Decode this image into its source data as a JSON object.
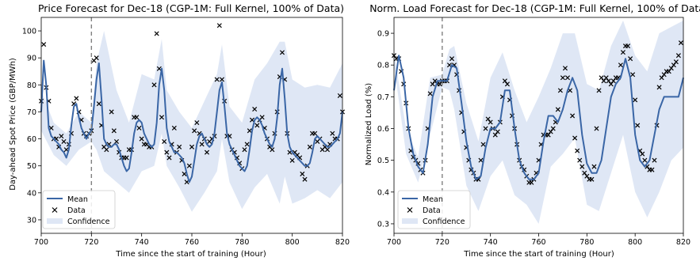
{
  "chart_data": [
    {
      "type": "line",
      "title": "Price Forecast for Dec-18 (CGP-1M: Full Kernel, 100% of Data)",
      "xlabel": "Time since the start of training (Hour)",
      "ylabel": "Day-ahead Spot Price (GBP/MWh)",
      "xlim": [
        700,
        820
      ],
      "ylim": [
        25,
        105
      ],
      "xticks": [
        700,
        720,
        740,
        760,
        780,
        800,
        820
      ],
      "yticks": [
        30,
        40,
        50,
        60,
        70,
        80,
        90,
        100
      ],
      "vline_x": 720,
      "grid": false,
      "legend": {
        "position": "lower-left",
        "entries": [
          "Mean",
          "Data",
          "Confidence"
        ]
      },
      "colors": {
        "mean": "#3a66a6",
        "confidence": "#c9d7ee",
        "data": "#000000",
        "vline": "#808080"
      },
      "series": [
        {
          "name": "Mean",
          "x": [
            700,
            701,
            702,
            703,
            704,
            705,
            706,
            707,
            708,
            709,
            710,
            711,
            712,
            713,
            714,
            715,
            716,
            717,
            718,
            719,
            720,
            721,
            722,
            723,
            724,
            725,
            726,
            727,
            728,
            729,
            730,
            731,
            732,
            733,
            734,
            735,
            736,
            737,
            738,
            739,
            740,
            741,
            742,
            743,
            744,
            745,
            746,
            747,
            748,
            749,
            750,
            751,
            752,
            753,
            754,
            755,
            756,
            757,
            758,
            759,
            760,
            761,
            762,
            763,
            764,
            765,
            766,
            767,
            768,
            769,
            770,
            771,
            772,
            773,
            774,
            775,
            776,
            777,
            778,
            779,
            780,
            781,
            782,
            783,
            784,
            785,
            786,
            787,
            788,
            789,
            790,
            791,
            792,
            793,
            794,
            795,
            796,
            797,
            798,
            799,
            800,
            801,
            802,
            803,
            804,
            805,
            806,
            807,
            808,
            809,
            810,
            811,
            812,
            813,
            814,
            815,
            816,
            817,
            818,
            819,
            820
          ],
          "y": [
            70,
            89,
            80,
            64,
            61,
            60,
            59,
            58,
            56,
            55,
            53,
            56,
            65,
            72,
            73,
            68,
            64,
            62,
            60,
            62,
            63,
            72,
            82,
            88,
            75,
            60,
            58,
            57,
            57,
            58,
            58,
            56,
            53,
            50,
            48,
            49,
            55,
            62,
            66,
            67,
            66,
            62,
            60,
            58,
            57,
            58,
            66,
            80,
            86,
            78,
            64,
            59,
            57,
            55,
            55,
            54,
            53,
            51,
            47,
            44,
            46,
            52,
            58,
            61,
            62,
            60,
            58,
            57,
            58,
            62,
            70,
            78,
            81,
            72,
            62,
            58,
            56,
            54,
            52,
            50,
            49,
            48,
            50,
            56,
            63,
            67,
            68,
            67,
            65,
            62,
            60,
            58,
            57,
            60,
            68,
            80,
            86,
            75,
            62,
            57,
            55,
            54,
            53,
            52,
            51,
            50,
            50,
            51,
            55,
            60,
            61,
            60,
            59,
            58,
            57,
            57,
            58,
            59,
            60,
            62,
            70
          ]
        },
        {
          "name": "Confidence",
          "x": [
            700,
            705,
            710,
            715,
            720,
            722,
            725,
            730,
            735,
            740,
            745,
            748,
            750,
            755,
            760,
            765,
            770,
            772,
            775,
            780,
            785,
            790,
            795,
            797,
            800,
            805,
            810,
            815,
            820
          ],
          "lower": [
            63,
            54,
            50,
            56,
            59,
            56,
            48,
            44,
            40,
            48,
            50,
            62,
            50,
            42,
            33,
            40,
            48,
            60,
            44,
            34,
            42,
            47,
            36,
            46,
            36,
            38,
            41,
            38,
            44
          ],
          "upper": [
            78,
            66,
            62,
            70,
            66,
            88,
            100,
            78,
            66,
            84,
            82,
            97,
            78,
            70,
            64,
            74,
            84,
            95,
            72,
            66,
            82,
            88,
            96,
            96,
            82,
            79,
            80,
            79,
            88
          ]
        },
        {
          "name": "Data",
          "x": [
            700,
            701,
            702,
            703,
            704,
            705,
            706,
            707,
            708,
            709,
            710,
            711,
            712,
            713,
            714,
            715,
            716,
            717,
            718,
            719,
            720,
            721,
            722,
            723,
            724,
            725,
            726,
            727,
            728,
            729,
            730,
            731,
            732,
            733,
            734,
            735,
            736,
            737,
            738,
            739,
            740,
            741,
            742,
            743,
            744,
            745,
            746,
            747,
            748,
            749,
            750,
            751,
            752,
            753,
            754,
            755,
            756,
            757,
            758,
            759,
            760,
            761,
            762,
            763,
            764,
            765,
            766,
            767,
            768,
            769,
            770,
            771,
            772,
            773,
            774,
            775,
            776,
            777,
            778,
            779,
            780,
            781,
            782,
            783,
            784,
            785,
            786,
            787,
            788,
            789,
            790,
            791,
            792,
            793,
            794,
            795,
            796,
            797,
            798,
            799,
            800,
            801,
            802,
            803,
            804,
            805,
            806,
            807,
            808,
            809,
            810,
            811,
            812,
            813,
            814,
            815,
            816,
            817,
            818,
            819,
            820
          ],
          "y": [
            74,
            95,
            79,
            74,
            64,
            60,
            60,
            57,
            61,
            59,
            56,
            58,
            62,
            73,
            75,
            70,
            67,
            62,
            61,
            62,
            63,
            89,
            90,
            73,
            65,
            57,
            56,
            58,
            70,
            63,
            59,
            55,
            53,
            53,
            53,
            56,
            56,
            68,
            68,
            64,
            60,
            58,
            58,
            57,
            57,
            80,
            99,
            86,
            68,
            59,
            55,
            53,
            58,
            64,
            55,
            57,
            52,
            47,
            44,
            50,
            57,
            63,
            66,
            62,
            58,
            60,
            55,
            59,
            60,
            61,
            82,
            102,
            82,
            74,
            61,
            61,
            56,
            55,
            53,
            51,
            49,
            56,
            58,
            63,
            67,
            71,
            65,
            67,
            68,
            64,
            60,
            57,
            56,
            62,
            70,
            83,
            92,
            82,
            62,
            55,
            52,
            55,
            54,
            53,
            47,
            45,
            50,
            57,
            62,
            62,
            59,
            60,
            56,
            57,
            56,
            58,
            62,
            60,
            60,
            76,
            70
          ]
        }
      ]
    },
    {
      "type": "line",
      "title": "Norm. Load Forecast for Dec-18 (CGP-1M: Full Kernel, 100% of Data)",
      "xlabel": "Time since the start of training (Hour)",
      "ylabel": "Normalized Load (%)",
      "xlim": [
        700,
        820
      ],
      "ylim": [
        0.27,
        0.95
      ],
      "xticks": [
        700,
        720,
        740,
        760,
        780,
        800,
        820
      ],
      "yticks": [
        0.3,
        0.4,
        0.5,
        0.6,
        0.7,
        0.8,
        0.9
      ],
      "vline_x": 720,
      "grid": false,
      "legend": {
        "position": "lower-left",
        "entries": [
          "Mean",
          "Data",
          "Confidence"
        ]
      },
      "colors": {
        "mean": "#3a66a6",
        "confidence": "#c9d7ee",
        "data": "#000000",
        "vline": "#808080"
      },
      "series": [
        {
          "name": "Mean",
          "x": [
            700,
            702,
            704,
            706,
            708,
            710,
            712,
            714,
            716,
            718,
            720,
            722,
            724,
            726,
            728,
            730,
            732,
            734,
            736,
            738,
            740,
            742,
            744,
            746,
            748,
            750,
            752,
            754,
            756,
            758,
            760,
            762,
            764,
            766,
            768,
            770,
            772,
            774,
            776,
            778,
            780,
            782,
            784,
            786,
            788,
            790,
            792,
            794,
            796,
            798,
            800,
            802,
            804,
            806,
            808,
            810,
            812,
            814,
            816,
            818,
            820
          ],
          "y": [
            0.72,
            0.83,
            0.76,
            0.6,
            0.52,
            0.48,
            0.46,
            0.55,
            0.7,
            0.75,
            0.75,
            0.75,
            0.8,
            0.79,
            0.68,
            0.56,
            0.48,
            0.44,
            0.45,
            0.54,
            0.6,
            0.6,
            0.62,
            0.72,
            0.72,
            0.6,
            0.5,
            0.46,
            0.44,
            0.44,
            0.46,
            0.56,
            0.64,
            0.64,
            0.62,
            0.66,
            0.72,
            0.76,
            0.72,
            0.58,
            0.49,
            0.46,
            0.46,
            0.5,
            0.6,
            0.7,
            0.74,
            0.76,
            0.82,
            0.76,
            0.58,
            0.5,
            0.48,
            0.5,
            0.58,
            0.66,
            0.7,
            0.7,
            0.7,
            0.7,
            0.76
          ]
        },
        {
          "name": "Confidence",
          "x": [
            700,
            705,
            710,
            715,
            720,
            723,
            725,
            730,
            735,
            740,
            745,
            750,
            755,
            760,
            765,
            770,
            775,
            780,
            785,
            790,
            795,
            800,
            805,
            810,
            815,
            820
          ],
          "lower": [
            0.8,
            0.52,
            0.43,
            0.58,
            0.73,
            0.72,
            0.66,
            0.42,
            0.34,
            0.45,
            0.5,
            0.39,
            0.36,
            0.3,
            0.48,
            0.52,
            0.57,
            0.36,
            0.34,
            0.46,
            0.58,
            0.4,
            0.32,
            0.4,
            0.5,
            0.54
          ],
          "upper": [
            0.84,
            0.6,
            0.51,
            0.76,
            0.77,
            0.85,
            0.86,
            0.68,
            0.56,
            0.76,
            0.84,
            0.72,
            0.62,
            0.7,
            0.79,
            0.9,
            0.9,
            0.74,
            0.72,
            0.86,
            0.94,
            0.83,
            0.78,
            0.9,
            0.92,
            0.94
          ]
        },
        {
          "name": "Data",
          "x": [
            700,
            701,
            702,
            703,
            704,
            705,
            706,
            707,
            708,
            709,
            710,
            711,
            712,
            713,
            714,
            715,
            716,
            717,
            718,
            719,
            720,
            721,
            722,
            723,
            724,
            725,
            726,
            727,
            728,
            729,
            730,
            731,
            732,
            733,
            734,
            735,
            736,
            737,
            738,
            739,
            740,
            741,
            742,
            743,
            744,
            745,
            746,
            747,
            748,
            749,
            750,
            751,
            752,
            753,
            754,
            755,
            756,
            757,
            758,
            759,
            760,
            761,
            762,
            763,
            764,
            765,
            766,
            767,
            768,
            769,
            770,
            771,
            772,
            773,
            774,
            775,
            776,
            777,
            778,
            779,
            780,
            781,
            782,
            783,
            784,
            785,
            786,
            787,
            788,
            789,
            790,
            791,
            792,
            793,
            794,
            795,
            796,
            797,
            798,
            799,
            800,
            801,
            802,
            803,
            804,
            805,
            806,
            807,
            808,
            809,
            810,
            811,
            812,
            813,
            814,
            815,
            816,
            817,
            818,
            819
          ],
          "y": [
            0.83,
            0.82,
            0.82,
            0.78,
            0.74,
            0.68,
            0.6,
            0.53,
            0.51,
            0.5,
            0.49,
            0.47,
            0.46,
            0.5,
            0.6,
            0.71,
            0.74,
            0.75,
            0.74,
            0.74,
            0.75,
            0.75,
            0.75,
            0.8,
            0.82,
            0.8,
            0.77,
            0.72,
            0.65,
            0.59,
            0.54,
            0.5,
            0.47,
            0.46,
            0.44,
            0.44,
            0.5,
            0.55,
            0.6,
            0.63,
            0.62,
            0.6,
            0.58,
            0.59,
            0.62,
            0.7,
            0.75,
            0.74,
            0.69,
            0.64,
            0.6,
            0.55,
            0.5,
            0.48,
            0.47,
            0.45,
            0.43,
            0.43,
            0.44,
            0.46,
            0.5,
            0.55,
            0.58,
            0.58,
            0.58,
            0.59,
            0.6,
            0.62,
            0.66,
            0.72,
            0.76,
            0.79,
            0.76,
            0.72,
            0.64,
            0.57,
            0.53,
            0.5,
            0.48,
            0.46,
            0.45,
            0.44,
            0.44,
            0.48,
            0.6,
            0.72,
            0.76,
            0.75,
            0.76,
            0.75,
            0.74,
            0.75,
            0.76,
            0.76,
            0.8,
            0.84,
            0.86,
            0.86,
            0.82,
            0.77,
            0.69,
            0.61,
            0.53,
            0.52,
            0.5,
            0.48,
            0.47,
            0.47,
            0.5,
            0.61,
            0.73,
            0.76,
            0.77,
            0.78,
            0.78,
            0.79,
            0.8,
            0.81,
            0.83,
            0.87
          ]
        }
      ]
    }
  ]
}
